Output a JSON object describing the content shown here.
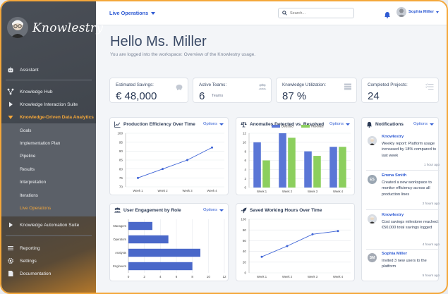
{
  "brand": {
    "name": "Knowlestry"
  },
  "topbar": {
    "workspace": "Live Operations",
    "search_placeholder": "Search...",
    "user_name": "Sophia Miller"
  },
  "sidebar": {
    "items": [
      {
        "label": "Assistant",
        "icon": "robot-icon"
      },
      {
        "label": "Knowledge Hub",
        "icon": "hub-icon"
      },
      {
        "label": "Knowledge Interaction Suite",
        "icon": "play-icon"
      },
      {
        "label": "Knowledge-Driven Data Analytics",
        "icon": "chevron-down-icon",
        "active": true
      },
      {
        "label": "Knowledge Automation Suite",
        "icon": "play-icon"
      },
      {
        "label": "Reporting",
        "icon": "list-icon"
      },
      {
        "label": "Settings",
        "icon": "gear-icon"
      },
      {
        "label": "Documentation",
        "icon": "document-icon"
      }
    ],
    "subitems": [
      "Goals",
      "Implementation Plan",
      "Pipeline",
      "Results",
      "Interpretation",
      "Iterations",
      "Live Operations"
    ]
  },
  "header": {
    "title": "Hello Ms. Miller",
    "subtitle": "You are logged into the workspace: Overview of the Knowlestry usage."
  },
  "kpis": [
    {
      "label": "Estimated Savings:",
      "value": "€ 48,000",
      "sub": ""
    },
    {
      "label": "Active Teams:",
      "value": "6",
      "sub": "Teams"
    },
    {
      "label": "Knowledge Utilization:",
      "value": "87 %",
      "sub": ""
    },
    {
      "label": "Completed Projects:",
      "value": "24",
      "sub": ""
    }
  ],
  "options_label": "Options",
  "chart_data": [
    {
      "type": "line",
      "title": "Production Efficiency Over Time",
      "categories": [
        "Week 1",
        "Week 2",
        "Week 3",
        "Week 4"
      ],
      "values": [
        75,
        80,
        85,
        92
      ],
      "ylim": [
        70,
        100
      ],
      "yticks": [
        70,
        75,
        80,
        85,
        90,
        95,
        100
      ],
      "color": "#3d63d6"
    },
    {
      "type": "bar",
      "title": "Anomalies Detected vs. Resolved",
      "categories": [
        "Week 1",
        "Week 2",
        "Week 3",
        "Week 4"
      ],
      "series": [
        {
          "name": "Detected",
          "values": [
            10,
            12,
            8,
            9
          ],
          "color": "#5a76d6"
        },
        {
          "name": "Resolved",
          "values": [
            6,
            11,
            7,
            9
          ],
          "color": "#8ccf5e"
        }
      ],
      "ylim": [
        0,
        12
      ],
      "yticks": [
        0,
        2,
        4,
        6,
        8,
        10,
        12
      ]
    },
    {
      "type": "bar",
      "orientation": "horizontal",
      "title": "User Engagement by Role",
      "categories": [
        "Managers",
        "Operators",
        "Analysts",
        "Engineers"
      ],
      "values": [
        3,
        5,
        9,
        8
      ],
      "xlim": [
        0,
        12
      ],
      "xticks": [
        0,
        2,
        4,
        6,
        8,
        10,
        12
      ],
      "color": "#4a68c9"
    },
    {
      "type": "line",
      "title": "Saved Working Hours Over Time",
      "categories": [
        "Week 1",
        "Week 2",
        "Week 3",
        "Week 4"
      ],
      "values": [
        30,
        50,
        72,
        78
      ],
      "ylim": [
        0,
        100
      ],
      "yticks": [
        0,
        20,
        40,
        60,
        80,
        100
      ],
      "color": "#3d63d6"
    }
  ],
  "notifications": {
    "title": "Notifications",
    "items": [
      {
        "name": "Knowlestry",
        "initials": "",
        "avatar_color": "#d9dde3",
        "message": "Weekly report: Platform usage increased by 18% compared to last week",
        "time": "1 hour ago"
      },
      {
        "name": "Emma Smith",
        "initials": "ES",
        "avatar_color": "#9aa6b2",
        "message": "Created a new workspace to monitor efficiency across all production lines",
        "time": "2 hours ago"
      },
      {
        "name": "Knowlestry",
        "initials": "",
        "avatar_color": "#d9dde3",
        "message": "Cost savings milestone reached: €50,000 total savings logged",
        "time": "4 hours ago"
      },
      {
        "name": "Sophia Miller",
        "initials": "SM",
        "avatar_color": "#a5abb5",
        "message": "Invited 3 new users to the platform",
        "time": "5 hours ago"
      }
    ]
  }
}
